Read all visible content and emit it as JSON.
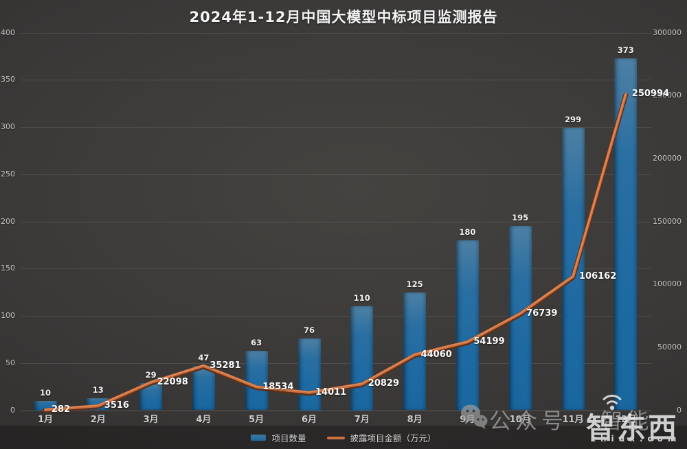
{
  "page_title": "2024年1-12月中国大模型中标项目监测报告",
  "chart_data": {
    "type": "bar",
    "subtype": "combo-bar-line-dual-axis",
    "title": "2024年1-12月中国大模型中标项目监测报告",
    "categories": [
      "1月",
      "2月",
      "3月",
      "4月",
      "5月",
      "6月",
      "7月",
      "8月",
      "9月",
      "10月",
      "11月",
      "12月"
    ],
    "series": [
      {
        "name": "项目数量",
        "type": "bar",
        "yaxis": "left",
        "values": [
          10,
          13,
          29,
          47,
          63,
          76,
          110,
          125,
          180,
          195,
          299,
          373
        ]
      },
      {
        "name": "披露项目金额（万元）",
        "type": "line",
        "yaxis": "right",
        "values": [
          282,
          3516,
          22098,
          35281,
          18534,
          14011,
          20829,
          44060,
          54199,
          76739,
          106162,
          250994
        ]
      }
    ],
    "left_axis": {
      "min": 0,
      "max": 400,
      "step": 50,
      "ticks": [
        0,
        50,
        100,
        150,
        200,
        250,
        300,
        350,
        400
      ]
    },
    "right_axis": {
      "min": 0,
      "max": 300000,
      "step": 50000,
      "ticks": [
        0,
        50000,
        100000,
        150000,
        200000,
        250000,
        300000
      ]
    },
    "grid": true,
    "legend_position": "bottom",
    "data_labels": true
  },
  "legend": {
    "bar_label": "项目数量",
    "line_label": "披露项目金额（万元）"
  },
  "watermark": {
    "wechat_text": "公众号 · 智能",
    "logo_text": "智东西",
    "logo_domain": "zhidx.com"
  },
  "colors": {
    "background": "#3a3837",
    "bar_top": "#4d80a4",
    "bar_bottom": "#1a669e",
    "line": "#cf7040",
    "line_shadow": "#5c311a",
    "title_text": "#f4f4f4",
    "axis_text": "#c6c6c6",
    "label_text": "#fcfcfc"
  }
}
